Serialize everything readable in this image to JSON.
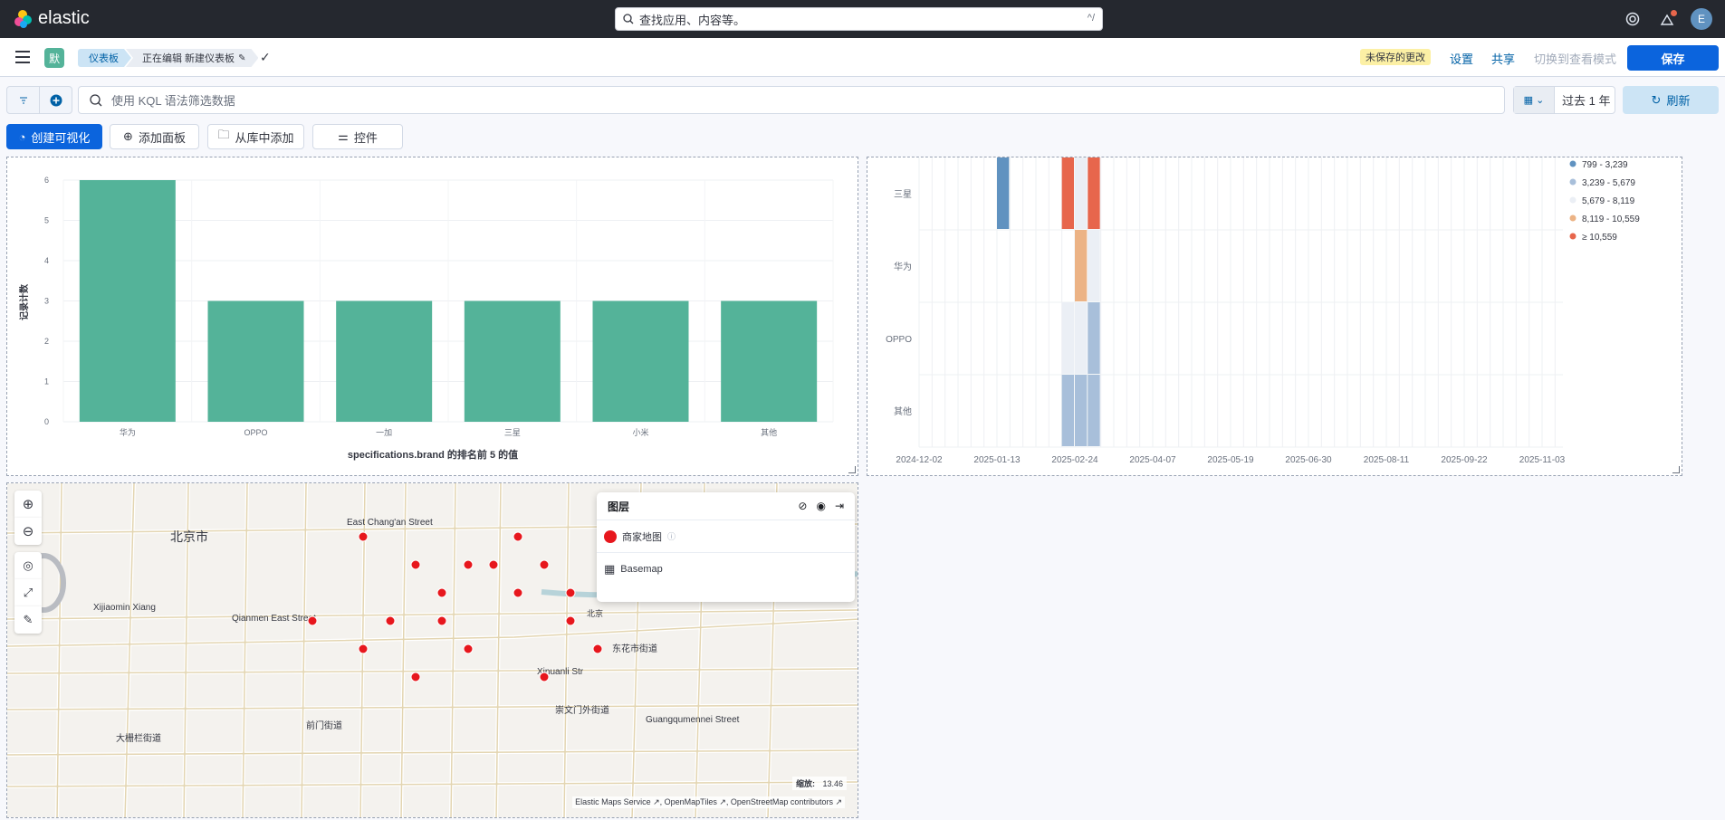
{
  "topbar": {
    "logo_text": "elastic",
    "search_placeholder": "查找应用、内容等。",
    "search_shortcut": "^/",
    "avatar": "E"
  },
  "nav": {
    "app_badge": "默",
    "crumb_dashboards": "仪表板",
    "crumb_editing": "正在编辑 新建仪表板",
    "unsaved": "未保存的更改",
    "settings": "设置",
    "share": "共享",
    "switch_view": "切换到查看模式",
    "save": "保存"
  },
  "query": {
    "placeholder": "使用 KQL 语法筛选数据",
    "date_label": "过去 1 年",
    "refresh": "刷新"
  },
  "toolbar": {
    "create_viz": "创建可视化",
    "add_panel": "添加面板",
    "add_from_library": "从库中添加",
    "controls": "控件"
  },
  "bar_chart": {
    "ylabel": "记录计数",
    "xlabel": "specifications.brand 的排名前 5 的值",
    "y_ticks": [
      "0",
      "1",
      "2",
      "3",
      "4",
      "5",
      "6"
    ]
  },
  "heatmap": {
    "rows": [
      "三星",
      "华为",
      "OPPO",
      "其他"
    ],
    "x_ticks": [
      "2024-12-02",
      "2025-01-13",
      "2025-02-24",
      "2025-04-07",
      "2025-05-19",
      "2025-06-30",
      "2025-08-11",
      "2025-09-22",
      "2025-11-03"
    ],
    "legend": [
      {
        "label": "799 - 3,239",
        "color": "#6092c0"
      },
      {
        "label": "3,239 - 5,679",
        "color": "#a8bfda"
      },
      {
        "label": "5,679 - 8,119",
        "color": "#ebeff5"
      },
      {
        "label": "8,119 - 10,559",
        "color": "#ecb385"
      },
      {
        "label": "≥ 10,559",
        "color": "#e7664c"
      }
    ]
  },
  "chart_data": [
    {
      "type": "bar",
      "categories": [
        "华为",
        "OPPO",
        "一加",
        "三星",
        "小米",
        "其他"
      ],
      "values": [
        6,
        3,
        3,
        3,
        3,
        3
      ],
      "xlabel": "specifications.brand 的排名前 5 的值",
      "ylabel": "记录计数",
      "ylim": [
        0,
        6
      ],
      "color": "#54b399"
    },
    {
      "type": "heatmap",
      "rows": [
        "三星",
        "华为",
        "OPPO",
        "其他"
      ],
      "cells": [
        {
          "row": "三星",
          "x": "2025-01-13",
          "bin": "799 - 3,239"
        },
        {
          "row": "三星",
          "x": "2025-02-17",
          "bin": "≥ 10,559"
        },
        {
          "row": "三星",
          "x": "2025-02-24",
          "bin": "5,679 - 8,119"
        },
        {
          "row": "三星",
          "x": "2025-03-03",
          "bin": "≥ 10,559"
        },
        {
          "row": "华为",
          "x": "2025-02-24",
          "bin": "8,119 - 10,559"
        },
        {
          "row": "华为",
          "x": "2025-03-03",
          "bin": "5,679 - 8,119"
        },
        {
          "row": "OPPO",
          "x": "2025-02-17",
          "bin": "5,679 - 8,119"
        },
        {
          "row": "OPPO",
          "x": "2025-02-24",
          "bin": "5,679 - 8,119"
        },
        {
          "row": "OPPO",
          "x": "2025-03-03",
          "bin": "3,239 - 5,679"
        },
        {
          "row": "其他",
          "x": "2025-02-17",
          "bin": "3,239 - 5,679"
        },
        {
          "row": "其他",
          "x": "2025-02-24",
          "bin": "3,239 - 5,679"
        },
        {
          "row": "其他",
          "x": "2025-03-03",
          "bin": "3,239 - 5,679"
        }
      ],
      "legend": [
        "799 - 3,239",
        "3,239 - 5,679",
        "5,679 - 8,119",
        "8,119 - 10,559",
        "≥ 10,559"
      ]
    }
  ],
  "map": {
    "layers_title": "图层",
    "layers": [
      {
        "name": "商家地图",
        "color": "#e7171d"
      },
      {
        "name": "Basemap"
      }
    ],
    "labels": [
      "北京市",
      "East Chang'an Street",
      "Xijiaomin Xiang",
      "Qianmen East Street",
      "东花市街道",
      "Xinuanli Str",
      "崇文门外街道",
      "Guangqumennei Street",
      "前门街道",
      "大栅栏街道",
      "北京"
    ],
    "zoom_label": "缩放:",
    "zoom_value": "13.46",
    "attribution": [
      "Elastic Maps Service",
      "OpenMapTiles",
      "OpenStreetMap contributors"
    ]
  }
}
